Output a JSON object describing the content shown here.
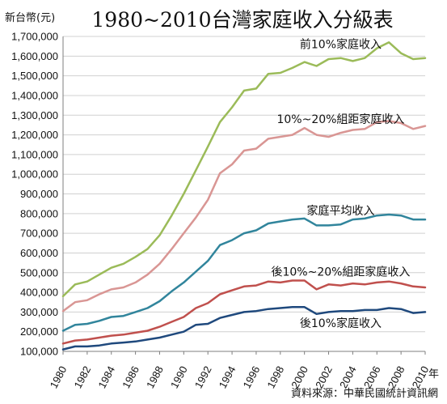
{
  "chart_data": {
    "type": "line",
    "title": "1980~2010台灣家庭收入分級表",
    "ylabel": "新台幣(元)",
    "xlabel": "年",
    "source": "資料來源：中華民國統計資訊網",
    "ylim": [
      100000,
      1700000
    ],
    "yticks": [
      100000,
      200000,
      300000,
      400000,
      500000,
      600000,
      700000,
      800000,
      900000,
      1000000,
      1100000,
      1200000,
      1300000,
      1400000,
      1500000,
      1600000,
      1700000
    ],
    "ytick_labels": [
      "100,000",
      "200,000",
      "300,000",
      "400,000",
      "500,000",
      "600,000",
      "700,000",
      "800,000",
      "900,000",
      "1,000,000",
      "1,100,000",
      "1,200,000",
      "1,300,000",
      "1,400,000",
      "1,500,000",
      "1,600,000",
      "1,700,000"
    ],
    "xlim": [
      1980,
      2010
    ],
    "xticks": [
      1980,
      1982,
      1984,
      1986,
      1988,
      1990,
      1992,
      1994,
      1996,
      1998,
      2000,
      2002,
      2004,
      2006,
      2008,
      2010
    ],
    "xtick_labels": [
      "1980",
      "1982",
      "1984",
      "1986",
      "1988",
      "1990",
      "1992",
      "1994",
      "1996",
      "1998",
      "2000",
      "2002",
      "2004",
      "2006",
      "2008",
      "2010"
    ],
    "grid": true,
    "legend": "none",
    "x": [
      1980,
      1981,
      1982,
      1983,
      1984,
      1985,
      1986,
      1987,
      1988,
      1989,
      1990,
      1991,
      1992,
      1993,
      1994,
      1995,
      1996,
      1997,
      1998,
      1999,
      2000,
      2001,
      2002,
      2003,
      2004,
      2005,
      2006,
      2007,
      2008,
      2009,
      2010
    ],
    "series": [
      {
        "name": "前10%家庭收入",
        "color": "#9bbb59",
        "values": [
          380000,
          440000,
          455000,
          490000,
          525000,
          545000,
          580000,
          620000,
          690000,
          790000,
          900000,
          1020000,
          1140000,
          1265000,
          1340000,
          1425000,
          1435000,
          1510000,
          1515000,
          1540000,
          1570000,
          1550000,
          1585000,
          1590000,
          1575000,
          1590000,
          1640000,
          1670000,
          1615000,
          1585000,
          1590000
        ]
      },
      {
        "name": "10%~20%組距家庭收入",
        "color": "#d99694",
        "values": [
          305000,
          350000,
          360000,
          390000,
          415000,
          425000,
          450000,
          490000,
          545000,
          620000,
          700000,
          780000,
          870000,
          1005000,
          1050000,
          1120000,
          1130000,
          1180000,
          1190000,
          1200000,
          1235000,
          1200000,
          1190000,
          1210000,
          1225000,
          1230000,
          1265000,
          1270000,
          1260000,
          1230000,
          1245000
        ]
      },
      {
        "name": "家庭平均收入",
        "color": "#31859c",
        "values": [
          205000,
          235000,
          240000,
          255000,
          275000,
          280000,
          300000,
          320000,
          355000,
          405000,
          450000,
          505000,
          560000,
          640000,
          665000,
          700000,
          715000,
          750000,
          760000,
          770000,
          775000,
          740000,
          740000,
          745000,
          770000,
          775000,
          790000,
          795000,
          790000,
          770000,
          770000
        ]
      },
      {
        "name": "後10%~20%組距家庭收入",
        "color": "#c0504d",
        "values": [
          140000,
          155000,
          160000,
          170000,
          180000,
          185000,
          195000,
          205000,
          225000,
          250000,
          275000,
          320000,
          345000,
          390000,
          410000,
          430000,
          435000,
          455000,
          450000,
          460000,
          460000,
          415000,
          440000,
          435000,
          445000,
          440000,
          450000,
          455000,
          445000,
          430000,
          425000
        ]
      },
      {
        "name": "後10%家庭收入",
        "color": "#1f497d",
        "values": [
          110000,
          125000,
          125000,
          130000,
          140000,
          145000,
          150000,
          160000,
          170000,
          185000,
          200000,
          235000,
          240000,
          270000,
          285000,
          300000,
          305000,
          315000,
          320000,
          325000,
          325000,
          290000,
          300000,
          305000,
          305000,
          310000,
          310000,
          320000,
          315000,
          295000,
          300000
        ]
      }
    ],
    "series_label_positions": [
      "upper",
      "upper",
      "upper",
      "upper",
      "lower"
    ]
  }
}
